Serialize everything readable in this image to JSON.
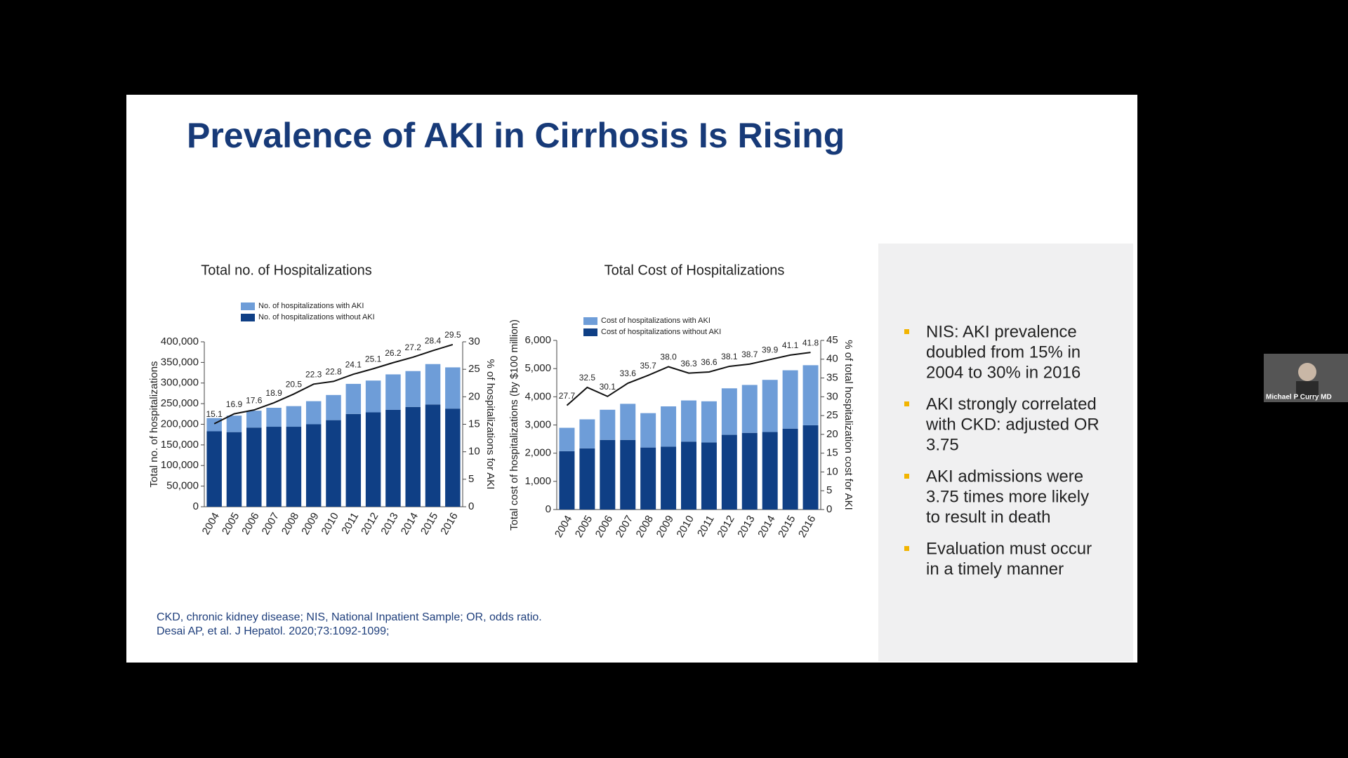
{
  "slide": {
    "title": "Prevalence of AKI in Cirrhosis Is Rising",
    "bullets": [
      [
        "NIS: AKI prevalence",
        "doubled from 15% in",
        "2004 to 30% in 2016"
      ],
      [
        "AKI strongly correlated",
        "with CKD: adjusted OR",
        "3.75"
      ],
      [
        "AKI admissions were",
        "3.75 times more likely",
        "to result in death"
      ],
      [
        "Evaluation must occur",
        "in a timely manner"
      ]
    ],
    "footnotes": [
      "CKD, chronic kidney disease; NIS, National Inpatient Sample; OR, odds ratio.",
      "Desai AP, et al. J Hepatol. 2020;73:1092-1099;"
    ]
  },
  "participant": {
    "name": "Michael P Curry MD"
  },
  "chart_data": [
    {
      "type": "bar",
      "stacked": true,
      "title": "Total no. of Hospitalizations",
      "ylabel": "Total no. of hospitalizations",
      "y2label": "% of hospitalizations for AKI",
      "categories": [
        "2004",
        "2005",
        "2006",
        "2007",
        "2008",
        "2009",
        "2010",
        "2011",
        "2012",
        "2013",
        "2014",
        "2015",
        "2016"
      ],
      "series": [
        {
          "name": "No. of hospitalizations without AKI",
          "color": "#0f3f85",
          "values": [
            183000,
            181000,
            192000,
            194000,
            194000,
            200000,
            210000,
            225000,
            229000,
            235000,
            242000,
            248000,
            238000
          ]
        },
        {
          "name": "No. of hospitalizations with AKI",
          "color": "#6e9dd8",
          "values": [
            32000,
            40000,
            41000,
            46000,
            50000,
            56000,
            61000,
            73000,
            77000,
            86000,
            87000,
            98000,
            100000
          ]
        },
        {
          "type": "line",
          "axis": "y2",
          "color": "#111111",
          "values": [
            15.1,
            16.9,
            17.6,
            18.9,
            20.5,
            22.3,
            22.8,
            24.1,
            25.1,
            26.2,
            27.2,
            28.4,
            29.5
          ]
        }
      ],
      "ylim": [
        0,
        400000
      ],
      "yticks": [
        0,
        {
          "value": 50000,
          "label": "50,000"
        },
        {
          "value": 100000,
          "label": "100,000"
        },
        {
          "value": 150000,
          "label": "150,000"
        },
        {
          "value": 200000,
          "label": "200,000"
        },
        {
          "value": 250000,
          "label": "250,000"
        },
        {
          "value": 300000,
          "label": "300,000"
        },
        {
          "value": 350000,
          "label": "350,000"
        },
        {
          "value": 400000,
          "label": "400,000"
        }
      ],
      "y2lim": [
        0,
        30
      ],
      "y2ticks": [
        0,
        5,
        10,
        15,
        20,
        25,
        30
      ]
    },
    {
      "type": "bar",
      "stacked": true,
      "title": "Total Cost of Hospitalizations",
      "ylabel": "Total cost of hospitalizations (by $100 million)",
      "y2label": "% of total hospitalization cost for AKI",
      "categories": [
        "2004",
        "2005",
        "2006",
        "2007",
        "2008",
        "2009",
        "2010",
        "2011",
        "2012",
        "2013",
        "2014",
        "2015",
        "2016"
      ],
      "series": [
        {
          "name": "Cost of hospitalizations without AKI",
          "color": "#0f3f85",
          "values": [
            2070,
            2170,
            2470,
            2470,
            2200,
            2230,
            2410,
            2380,
            2650,
            2720,
            2750,
            2870,
            2990
          ]
        },
        {
          "name": "Cost of hospitalizations with AKI",
          "color": "#6e9dd8",
          "values": [
            830,
            1030,
            1070,
            1280,
            1220,
            1430,
            1460,
            1460,
            1650,
            1700,
            1850,
            2070,
            2130
          ]
        },
        {
          "type": "line",
          "axis": "y2",
          "color": "#111111",
          "values": [
            27.7,
            32.5,
            30.1,
            33.6,
            35.7,
            38.0,
            36.3,
            36.6,
            38.1,
            38.7,
            39.9,
            41.1,
            41.8
          ],
          "value_labels": [
            "27.7",
            "32.5",
            "30.1",
            "33.6",
            "35.7",
            "38.0",
            "36.3",
            "36.6",
            "38.1",
            "38.7",
            "39.9",
            "41.1",
            "41.8"
          ]
        }
      ],
      "ylim": [
        0,
        6000
      ],
      "yticks": [
        0,
        {
          "value": 1000,
          "label": "1,000"
        },
        {
          "value": 2000,
          "label": "2,000"
        },
        {
          "value": 3000,
          "label": "3,000"
        },
        {
          "value": 4000,
          "label": "4,000"
        },
        {
          "value": 5000,
          "label": "5,000"
        },
        {
          "value": 6000,
          "label": "6,000"
        }
      ],
      "y2lim": [
        0,
        45
      ],
      "y2ticks": [
        0,
        5,
        10,
        15,
        20,
        25,
        30,
        35,
        40,
        45
      ]
    }
  ]
}
